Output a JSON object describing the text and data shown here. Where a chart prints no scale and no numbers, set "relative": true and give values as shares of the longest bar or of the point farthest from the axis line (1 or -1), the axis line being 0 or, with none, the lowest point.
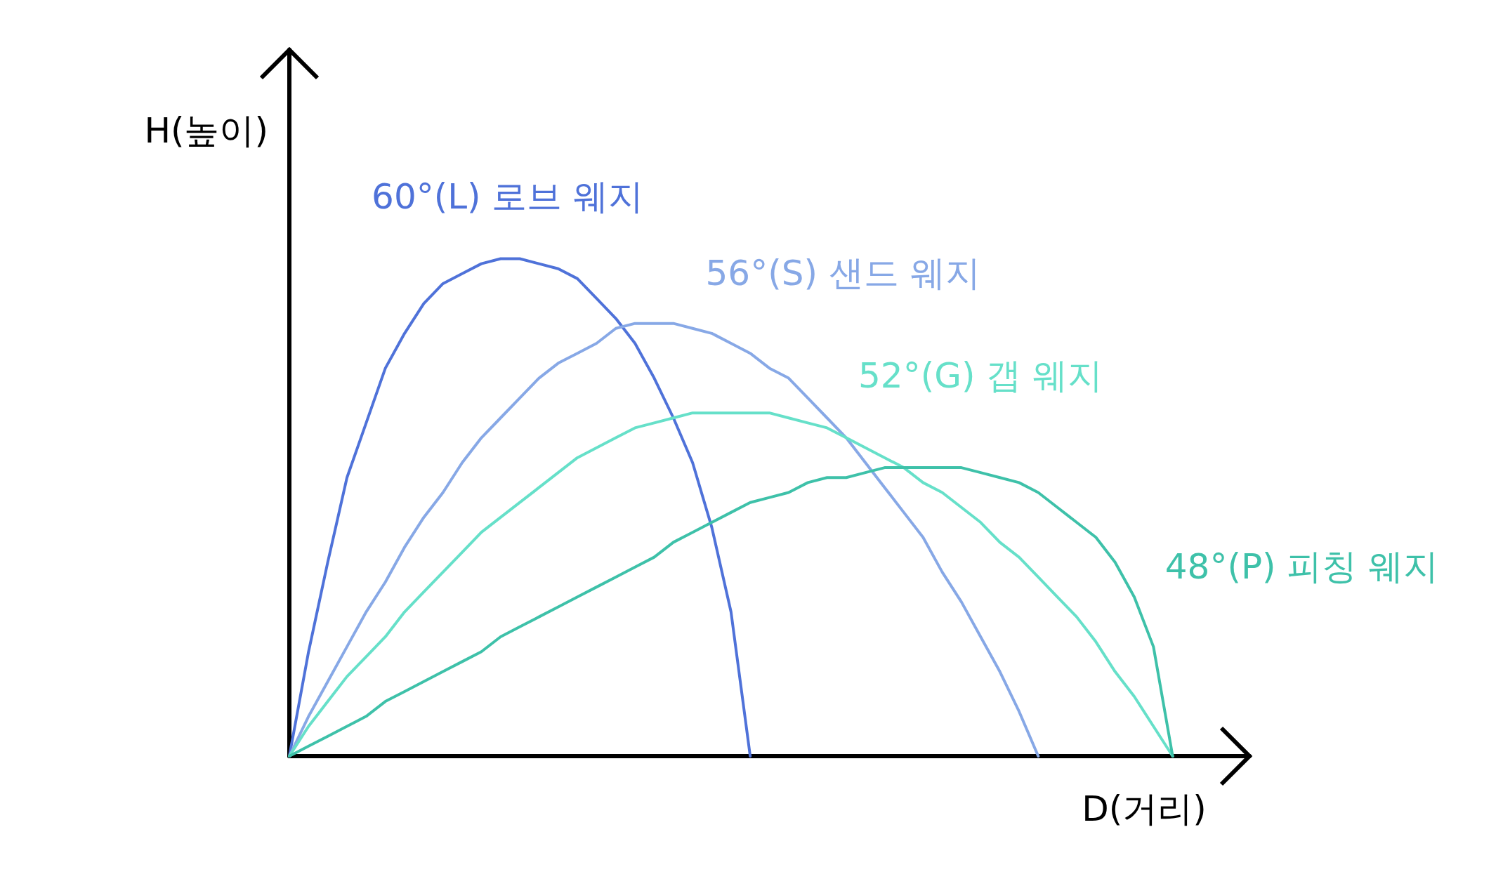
{
  "chart_data": {
    "type": "line",
    "xlabel": "D(거리)",
    "ylabel": "H(높이)",
    "relative": true,
    "tick_labels": false,
    "marker": "none",
    "line_style": "solid",
    "categories": [
      null,
      null,
      null,
      null,
      null,
      null,
      null,
      null,
      null,
      null,
      null,
      null,
      null,
      null,
      null,
      null,
      null,
      null,
      null,
      null,
      null,
      null,
      null,
      null,
      null,
      null,
      null,
      null,
      null,
      null,
      null,
      null,
      null,
      null,
      null,
      null,
      null,
      null,
      null,
      null,
      null,
      null,
      null,
      null,
      null,
      null,
      null,
      null,
      null,
      null,
      null
    ],
    "series": [
      {
        "name": "60°(L) 로브 웨지",
        "color": "#4f72d9",
        "values": [
          0,
          0.21,
          0.39,
          0.56,
          0.67,
          0.78,
          0.85,
          0.91,
          0.95,
          0.97,
          0.99,
          1,
          1,
          0.99,
          0.98,
          0.96,
          0.92,
          0.88,
          0.83,
          0.76,
          0.68,
          0.59,
          0.46,
          0.29,
          0,
          null,
          null,
          null,
          null,
          null,
          null,
          null,
          null,
          null,
          null,
          null,
          null,
          null,
          null,
          null,
          null,
          null,
          null,
          null,
          null,
          null,
          null,
          null,
          null,
          null,
          null
        ]
      },
      {
        "name": "56°(S) 샌드 웨지",
        "color": "#87a8e6",
        "values": [
          0,
          0.08,
          0.15,
          0.22,
          0.29,
          0.35,
          0.42,
          0.48,
          0.53,
          0.59,
          0.64,
          0.68,
          0.72,
          0.76,
          0.79,
          0.81,
          0.83,
          0.86,
          0.87,
          0.87,
          0.87,
          0.86,
          0.85,
          0.83,
          0.81,
          0.78,
          0.76,
          0.72,
          0.68,
          0.64,
          0.59,
          0.54,
          0.49,
          0.44,
          0.37,
          0.31,
          0.24,
          0.17,
          0.09,
          0,
          null,
          null,
          null,
          null,
          null,
          null,
          null,
          null,
          null,
          null,
          null
        ]
      },
      {
        "name": "52°(G) 갭 웨지",
        "color": "#66e0c9",
        "values": [
          0,
          0.06,
          0.11,
          0.16,
          0.2,
          0.24,
          0.29,
          0.33,
          0.37,
          0.41,
          0.45,
          0.48,
          0.51,
          0.54,
          0.57,
          0.6,
          0.62,
          0.64,
          0.66,
          0.67,
          0.68,
          0.69,
          0.69,
          0.69,
          0.69,
          0.69,
          0.68,
          0.67,
          0.66,
          0.64,
          0.62,
          0.6,
          0.58,
          0.55,
          0.53,
          0.5,
          0.47,
          0.43,
          0.4,
          0.36,
          0.32,
          0.28,
          0.23,
          0.17,
          0.12,
          0.06,
          0,
          null,
          null,
          null,
          null
        ]
      },
      {
        "name": "48°(P) 피칭 웨지",
        "color": "#3ec1a9",
        "values": [
          0,
          0.02,
          0.04,
          0.06,
          0.08,
          0.11,
          0.13,
          0.15,
          0.17,
          0.19,
          0.21,
          0.24,
          0.26,
          0.28,
          0.3,
          0.32,
          0.34,
          0.36,
          0.38,
          0.4,
          0.43,
          0.45,
          0.47,
          0.49,
          0.51,
          0.52,
          0.53,
          0.55,
          0.56,
          0.56,
          0.57,
          0.58,
          0.58,
          0.58,
          0.58,
          0.58,
          0.57,
          0.56,
          0.55,
          0.53,
          0.5,
          0.47,
          0.44,
          0.39,
          0.32,
          0.22,
          0,
          null,
          null,
          null,
          null
        ]
      }
    ]
  }
}
